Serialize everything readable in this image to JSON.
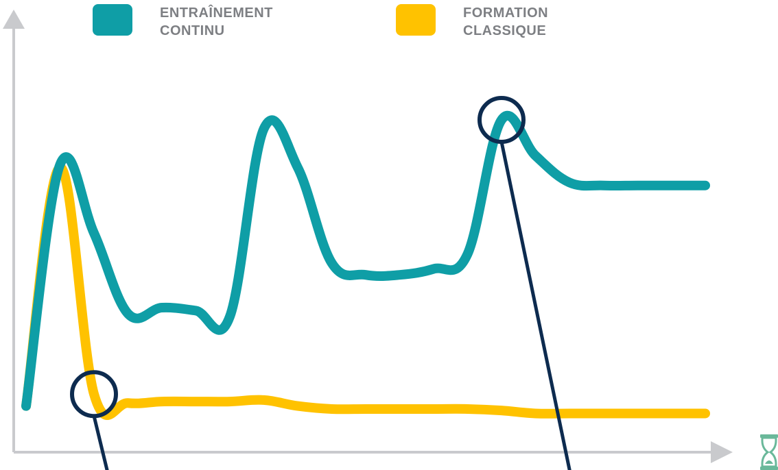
{
  "chart_data": {
    "type": "line",
    "title": "",
    "xlabel": "",
    "ylabel": "",
    "grid": false,
    "legend_placement": "top",
    "x": [
      0,
      1,
      2,
      3,
      4,
      5,
      6,
      7,
      8,
      9,
      10,
      11,
      12,
      13,
      14,
      15,
      16,
      17,
      18,
      19,
      20
    ],
    "series": [
      {
        "name": "ENTRAÎNEMENT\nCONTINU",
        "color": "#0f9ea6",
        "values": [
          0.04,
          0.85,
          0.62,
          0.35,
          0.37,
          0.36,
          0.34,
          0.97,
          0.84,
          0.52,
          0.48,
          0.48,
          0.5,
          0.55,
          1.0,
          0.88,
          0.79,
          0.78,
          0.78,
          0.78,
          0.78
        ]
      },
      {
        "name": "FORMATION\nCLASSIQUE",
        "color": "#ffc200",
        "values": [
          0.04,
          0.84,
          0.08,
          0.05,
          0.055,
          0.055,
          0.055,
          0.06,
          0.04,
          0.03,
          0.03,
          0.03,
          0.03,
          0.03,
          0.025,
          0.015,
          0.015,
          0.015,
          0.015,
          0.015,
          0.015
        ]
      }
    ],
    "annotations": [
      {
        "type": "circle-marker",
        "series": 1,
        "x": 2
      },
      {
        "type": "circle-marker",
        "series": 0,
        "x": 14
      }
    ],
    "axis_color": "#c9cacd",
    "marker_color": "#0d2b4f",
    "icon": "hourglass-icon",
    "icon_color": "#6ab89a"
  }
}
